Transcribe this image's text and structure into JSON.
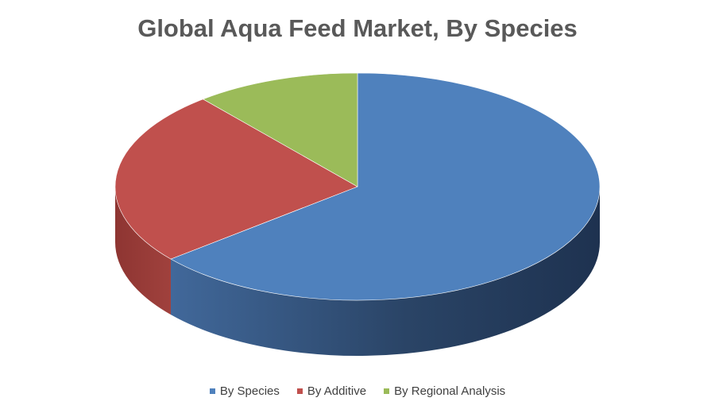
{
  "chart_data": {
    "type": "pie",
    "title": "Global Aqua Feed Market, By Species",
    "style": "3d",
    "legend_position": "bottom",
    "slices": [
      {
        "name": "By Species",
        "value": 64,
        "color": "#4F81BD"
      },
      {
        "name": "By Additive",
        "value": 25,
        "color": "#C0504D"
      },
      {
        "name": "By Regional Analysis",
        "value": 11,
        "color": "#9BBB59"
      }
    ]
  }
}
